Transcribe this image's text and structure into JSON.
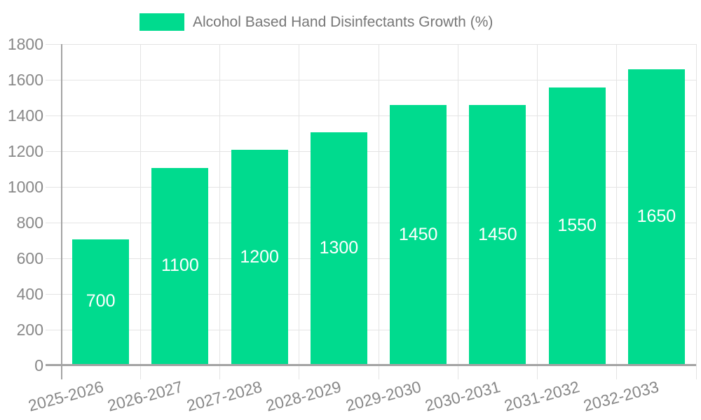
{
  "legend": {
    "label": "Alcohol Based Hand Disinfectants Growth (%)",
    "swatch_color": "#00DB8E"
  },
  "chart_data": {
    "type": "bar",
    "title": "Alcohol Based Hand Disinfectants Growth (%)",
    "categories": [
      "2025-2026",
      "2026-2027",
      "2027-2028",
      "2028-2029",
      "2029-2030",
      "2030-2031",
      "2031-2032",
      "2032-2033"
    ],
    "values": [
      700,
      1100,
      1200,
      1300,
      1450,
      1450,
      1550,
      1650
    ],
    "xlabel": "",
    "ylabel": "",
    "ylim": [
      0,
      1800
    ],
    "ytick_step": 200,
    "yticks": [
      0,
      200,
      400,
      600,
      800,
      1000,
      1200,
      1400,
      1600,
      1800
    ],
    "grid": true,
    "legend_position": "top-center",
    "value_labels": "centered-inside-bars",
    "bar_color": "#00DB8E",
    "value_label_color": "#FFFFFF"
  },
  "colors": {
    "bar": "#00DB8E",
    "grid": "#E4E4E4",
    "axis": "#A3A3A3",
    "tick_text": "#888888",
    "title_text": "#777777",
    "background": "#FFFFFF"
  }
}
